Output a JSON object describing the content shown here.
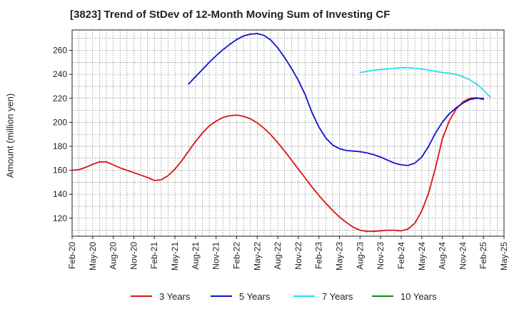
{
  "chart_data": {
    "type": "line",
    "title": "[3823]  Trend of StDev of 12-Month Moving Sum of Investing CF",
    "ylabel": "Amount (million yen)",
    "xlabel": "",
    "x_ticks": [
      "Feb-20",
      "May-20",
      "Aug-20",
      "Nov-20",
      "Feb-21",
      "May-21",
      "Aug-21",
      "Nov-21",
      "Feb-22",
      "May-22",
      "Aug-22",
      "Nov-22",
      "Feb-23",
      "May-23",
      "Aug-23",
      "Nov-23",
      "Feb-24",
      "May-24",
      "Aug-24",
      "Nov-24",
      "Feb-25",
      "May-25"
    ],
    "y_ticks": [
      120,
      140,
      160,
      180,
      200,
      220,
      240,
      260
    ],
    "ylim": [
      105,
      277
    ],
    "grid": true,
    "legend_position": "bottom",
    "series": [
      {
        "name": "3 Years",
        "color": "#dd1111",
        "points": [
          [
            "2020-02",
            160
          ],
          [
            "2020-03",
            160.5
          ],
          [
            "2020-04",
            162.5
          ],
          [
            "2020-05",
            165
          ],
          [
            "2020-06",
            167
          ],
          [
            "2020-07",
            167
          ],
          [
            "2020-08",
            164.5
          ],
          [
            "2020-09",
            162
          ],
          [
            "2020-10",
            160
          ],
          [
            "2020-11",
            158
          ],
          [
            "2020-12",
            156
          ],
          [
            "2021-01",
            154
          ],
          [
            "2021-02",
            151.5
          ],
          [
            "2021-03",
            152
          ],
          [
            "2021-04",
            155.5
          ],
          [
            "2021-05",
            161
          ],
          [
            "2021-06",
            168
          ],
          [
            "2021-07",
            176
          ],
          [
            "2021-08",
            184
          ],
          [
            "2021-09",
            191
          ],
          [
            "2021-10",
            197
          ],
          [
            "2021-11",
            201
          ],
          [
            "2021-12",
            204
          ],
          [
            "2022-01",
            205.5
          ],
          [
            "2022-02",
            206
          ],
          [
            "2022-03",
            205
          ],
          [
            "2022-04",
            203
          ],
          [
            "2022-05",
            199.5
          ],
          [
            "2022-06",
            195
          ],
          [
            "2022-07",
            189.5
          ],
          [
            "2022-08",
            183
          ],
          [
            "2022-09",
            176
          ],
          [
            "2022-10",
            168.5
          ],
          [
            "2022-11",
            161
          ],
          [
            "2022-12",
            153.5
          ],
          [
            "2023-01",
            146
          ],
          [
            "2023-02",
            139
          ],
          [
            "2023-03",
            132.5
          ],
          [
            "2023-04",
            126.5
          ],
          [
            "2023-05",
            121
          ],
          [
            "2023-06",
            116.5
          ],
          [
            "2023-07",
            112.5
          ],
          [
            "2023-08",
            110
          ],
          [
            "2023-09",
            109
          ],
          [
            "2023-10",
            109
          ],
          [
            "2023-11",
            109.5
          ],
          [
            "2023-12",
            110
          ],
          [
            "2024-01",
            110
          ],
          [
            "2024-02",
            109.5
          ],
          [
            "2024-03",
            111
          ],
          [
            "2024-04",
            116
          ],
          [
            "2024-05",
            126
          ],
          [
            "2024-06",
            141
          ],
          [
            "2024-07",
            162
          ],
          [
            "2024-08",
            186
          ],
          [
            "2024-09",
            201
          ],
          [
            "2024-10",
            211
          ],
          [
            "2024-11",
            217
          ],
          [
            "2024-12",
            220
          ],
          [
            "2025-01",
            220.5
          ],
          [
            "2025-02",
            219
          ]
        ]
      },
      {
        "name": "5 Years",
        "color": "#1111cc",
        "points": [
          [
            "2021-07",
            232
          ],
          [
            "2021-08",
            238
          ],
          [
            "2021-09",
            244
          ],
          [
            "2021-10",
            250
          ],
          [
            "2021-11",
            255.5
          ],
          [
            "2021-12",
            260.5
          ],
          [
            "2022-01",
            265
          ],
          [
            "2022-02",
            269
          ],
          [
            "2022-03",
            272
          ],
          [
            "2022-04",
            273.5
          ],
          [
            "2022-05",
            274
          ],
          [
            "2022-06",
            272.5
          ],
          [
            "2022-07",
            268.5
          ],
          [
            "2022-08",
            262
          ],
          [
            "2022-09",
            254
          ],
          [
            "2022-10",
            245
          ],
          [
            "2022-11",
            235
          ],
          [
            "2022-12",
            223
          ],
          [
            "2023-01",
            208
          ],
          [
            "2023-02",
            196
          ],
          [
            "2023-03",
            187
          ],
          [
            "2023-04",
            181
          ],
          [
            "2023-05",
            178
          ],
          [
            "2023-06",
            176.5
          ],
          [
            "2023-07",
            176
          ],
          [
            "2023-08",
            175.5
          ],
          [
            "2023-09",
            174.5
          ],
          [
            "2023-10",
            173
          ],
          [
            "2023-11",
            171
          ],
          [
            "2023-12",
            168.5
          ],
          [
            "2024-01",
            166
          ],
          [
            "2024-02",
            164.5
          ],
          [
            "2024-03",
            164
          ],
          [
            "2024-04",
            166
          ],
          [
            "2024-05",
            171
          ],
          [
            "2024-06",
            180
          ],
          [
            "2024-07",
            191
          ],
          [
            "2024-08",
            200
          ],
          [
            "2024-09",
            207
          ],
          [
            "2024-10",
            212
          ],
          [
            "2024-11",
            216
          ],
          [
            "2024-12",
            219
          ],
          [
            "2025-01",
            220
          ],
          [
            "2025-02",
            220
          ]
        ]
      },
      {
        "name": "7 Years",
        "color": "#22e0ee",
        "points": [
          [
            "2023-08",
            241.5
          ],
          [
            "2023-09",
            242.5
          ],
          [
            "2023-10",
            243.5
          ],
          [
            "2023-11",
            244
          ],
          [
            "2023-12",
            244.5
          ],
          [
            "2024-01",
            245
          ],
          [
            "2024-02",
            245.5
          ],
          [
            "2024-03",
            245.5
          ],
          [
            "2024-04",
            245
          ],
          [
            "2024-05",
            244.5
          ],
          [
            "2024-06",
            243.5
          ],
          [
            "2024-07",
            242.5
          ],
          [
            "2024-08",
            241.5
          ],
          [
            "2024-09",
            241
          ],
          [
            "2024-10",
            240
          ],
          [
            "2024-11",
            238
          ],
          [
            "2024-12",
            235.5
          ],
          [
            "2025-01",
            232
          ],
          [
            "2025-02",
            227
          ],
          [
            "2025-03",
            221
          ]
        ]
      },
      {
        "name": "10 Years",
        "color": "#118811",
        "points": []
      }
    ]
  }
}
